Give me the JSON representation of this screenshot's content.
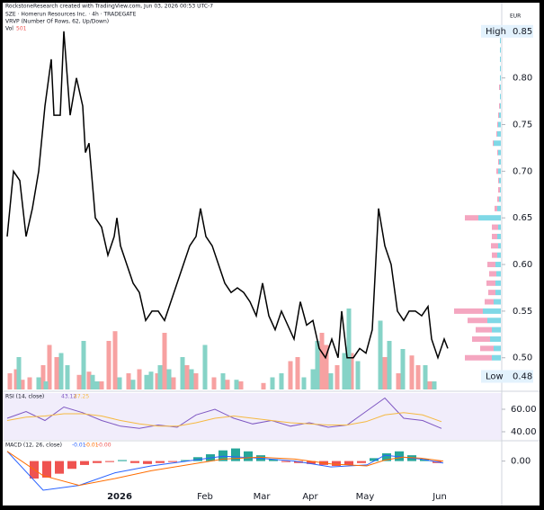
{
  "header": {
    "credit": "RockstoneResearch created with TradingView.com, Jun 03, 2026 00:53 UTC-7",
    "symbol": "SZE · Homerun Resources Inc. · 4h · TRADEGATE",
    "vrvp": "VRVP (Number Of Rows, 62, Up/Down)",
    "vol_label": "Vol",
    "vol_value": "501"
  },
  "chart_data": [
    {
      "type": "price",
      "currency": "EUR",
      "xlim": [
        0,
        502
      ],
      "xticks": [
        {
          "value": 130,
          "label": "2026"
        },
        {
          "value": 225,
          "label": "Feb"
        },
        {
          "value": 288,
          "label": "Mar"
        },
        {
          "value": 342,
          "label": "Apr"
        },
        {
          "value": 403,
          "label": "May"
        },
        {
          "value": 486,
          "label": "Jun"
        }
      ],
      "ylim": [
        0.466,
        0.872
      ],
      "yticks": [
        0.85,
        {
          "value": 0.8,
          "label": "0.80"
        },
        0.75,
        {
          "value": 0.7,
          "label": "0.70"
        },
        0.65,
        {
          "value": 0.6,
          "label": "0.60"
        },
        0.55,
        {
          "value": 0.5,
          "label": "0.50"
        }
      ],
      "high": {
        "label": "High",
        "value": 0.85
      },
      "low": {
        "label": "Low",
        "value": 0.48
      },
      "color": "#000000",
      "x": [
        5,
        12,
        19,
        26,
        33,
        40,
        47,
        54,
        57,
        64,
        68,
        75,
        82,
        89,
        92,
        96,
        103,
        110,
        117,
        124,
        127,
        131,
        138,
        145,
        152,
        159,
        166,
        173,
        180,
        187,
        194,
        201,
        208,
        215,
        220,
        226,
        233,
        240,
        247,
        254,
        261,
        268,
        275,
        282,
        289,
        296,
        303,
        310,
        317,
        324,
        331,
        338,
        345,
        352,
        359,
        366,
        373,
        377,
        383,
        390,
        397,
        404,
        411,
        418,
        425,
        432,
        439,
        446,
        452,
        459,
        466,
        473,
        477,
        484,
        491,
        495
      ],
      "values": [
        0.63,
        0.7,
        0.69,
        0.63,
        0.66,
        0.7,
        0.77,
        0.82,
        0.76,
        0.76,
        0.85,
        0.76,
        0.8,
        0.77,
        0.72,
        0.73,
        0.65,
        0.64,
        0.61,
        0.63,
        0.65,
        0.62,
        0.6,
        0.58,
        0.57,
        0.54,
        0.55,
        0.55,
        0.54,
        0.56,
        0.58,
        0.6,
        0.62,
        0.63,
        0.66,
        0.63,
        0.62,
        0.6,
        0.58,
        0.57,
        0.575,
        0.57,
        0.56,
        0.545,
        0.58,
        0.545,
        0.53,
        0.55,
        0.535,
        0.52,
        0.56,
        0.535,
        0.54,
        0.51,
        0.5,
        0.52,
        0.5,
        0.55,
        0.5,
        0.5,
        0.51,
        0.505,
        0.53,
        0.66,
        0.62,
        0.6,
        0.55,
        0.54,
        0.55,
        0.55,
        0.545,
        0.555,
        0.52,
        0.5,
        0.52,
        0.51
      ],
      "volume": {
        "vlim": [
          0,
          100
        ],
        "down": {
          "color": "#f7a1a1",
          "x": [
            8,
            15,
            22,
            30,
            45,
            52,
            60,
            85,
            96,
            110,
            118,
            125,
            140,
            152,
            172,
            180,
            190,
            205,
            215,
            235,
            250,
            265,
            290,
            320,
            328,
            355,
            360,
            372,
            388,
            425,
            440,
            455,
            462,
            475
          ],
          "values": [
            20,
            25,
            12,
            15,
            30,
            55,
            40,
            18,
            22,
            10,
            60,
            72,
            20,
            25,
            20,
            70,
            15,
            30,
            20,
            15,
            12,
            10,
            8,
            35,
            40,
            70,
            55,
            30,
            45,
            40,
            20,
            42,
            30,
            10
          ]
        },
        "up": {
          "color": "#86d3c7",
          "x": [
            18,
            40,
            48,
            65,
            72,
            90,
            100,
            105,
            130,
            145,
            160,
            165,
            175,
            185,
            200,
            210,
            225,
            245,
            260,
            300,
            310,
            335,
            345,
            350,
            365,
            380,
            385,
            395,
            420,
            430,
            445,
            470,
            480
          ],
          "values": [
            40,
            15,
            10,
            45,
            30,
            60,
            18,
            10,
            15,
            12,
            18,
            22,
            30,
            25,
            40,
            25,
            55,
            20,
            12,
            15,
            20,
            15,
            25,
            60,
            20,
            45,
            100,
            35,
            85,
            60,
            50,
            30,
            10
          ]
        }
      },
      "profile": {
        "up_color": "#7fd8e6",
        "down_color": "#f4a6c0",
        "levels": [
          0.5,
          0.51,
          0.52,
          0.53,
          0.54,
          0.55,
          0.56,
          0.57,
          0.58,
          0.59,
          0.6,
          0.61,
          0.62,
          0.63,
          0.64,
          0.65,
          0.66,
          0.67,
          0.68,
          0.69,
          0.7,
          0.71,
          0.72,
          0.73,
          0.74,
          0.75,
          0.76,
          0.77,
          0.78,
          0.79,
          0.8,
          0.81,
          0.82,
          0.83,
          0.84
        ],
        "up": [
          10,
          8,
          12,
          10,
          15,
          20,
          8,
          6,
          6,
          5,
          6,
          4,
          3,
          4,
          3,
          25,
          4,
          2,
          1,
          2,
          3,
          2,
          3,
          8,
          4,
          3,
          2,
          1,
          1,
          1,
          1,
          1,
          1,
          1,
          1
        ],
        "down": [
          30,
          15,
          20,
          18,
          22,
          32,
          10,
          8,
          10,
          8,
          9,
          6,
          8,
          6,
          7,
          15,
          3,
          2,
          2,
          1,
          2,
          1,
          1,
          1,
          1,
          1,
          1,
          1,
          0,
          1,
          0,
          0,
          0,
          0,
          0
        ]
      }
    },
    {
      "type": "rsi",
      "title": "RSI (14, close)",
      "legend_values": [
        "43.12",
        "47.25"
      ],
      "ylim": [
        33.6,
        74.4
      ],
      "yticks": [
        {
          "value": 60,
          "label": "60.00"
        },
        {
          "value": 40,
          "label": "40.00"
        }
      ],
      "x": [
        5,
        26,
        47,
        68,
        89,
        110,
        131,
        152,
        173,
        194,
        215,
        236,
        257,
        278,
        299,
        320,
        341,
        362,
        383,
        404,
        425,
        446,
        467,
        488
      ],
      "series": [
        {
          "color": "#7e57c2",
          "values": [
            52,
            58,
            50,
            62,
            57,
            50,
            45,
            43,
            46,
            44,
            55,
            60,
            52,
            47,
            50,
            45,
            48,
            44,
            46,
            58,
            70,
            52,
            50,
            43
          ]
        },
        {
          "color": "#f5b942",
          "values": [
            50,
            53,
            54,
            56,
            56,
            54,
            50,
            47,
            45,
            45,
            48,
            52,
            54,
            52,
            50,
            48,
            47,
            46,
            46,
            49,
            55,
            57,
            55,
            49
          ]
        }
      ]
    },
    {
      "type": "macd",
      "title": "MACD (12, 26, close)",
      "legend_values": [
        "-0.01",
        "-0.01",
        "-0.00"
      ],
      "ylim": [
        -0.03,
        0.02
      ],
      "yticks": [
        {
          "value": 0,
          "label": "0.00"
        }
      ],
      "hist": {
        "pos_color": "#26a69a",
        "neg_color": "#ef5350",
        "x": [
          35,
          49,
          63,
          77,
          91,
          105,
          119,
          133,
          147,
          161,
          175,
          189,
          203,
          217,
          231,
          245,
          259,
          273,
          287,
          301,
          315,
          329,
          343,
          357,
          371,
          385,
          399,
          413,
          427,
          441,
          455,
          469,
          483
        ],
        "values": [
          -0.018,
          -0.017,
          -0.013,
          -0.008,
          -0.004,
          -0.002,
          -0.001,
          0.001,
          -0.002,
          -0.003,
          -0.002,
          -0.001,
          0.001,
          0.004,
          0.007,
          0.011,
          0.013,
          0.01,
          0.006,
          0.002,
          -0.001,
          -0.002,
          -0.003,
          -0.004,
          -0.005,
          -0.004,
          -0.002,
          0.003,
          0.008,
          0.01,
          0.006,
          0.002,
          -0.002
        ]
      },
      "x": [
        5,
        45,
        85,
        125,
        165,
        205,
        245,
        285,
        325,
        365,
        405,
        425,
        445,
        465,
        490
      ],
      "series": [
        {
          "color": "#2962ff",
          "values": [
            0.01,
            -0.03,
            -0.025,
            -0.012,
            -0.005,
            0.0,
            0.005,
            0.003,
            0.0,
            -0.006,
            -0.004,
            0.006,
            0.004,
            0.002,
            -0.002
          ]
        },
        {
          "color": "#ff6d00",
          "values": [
            0.01,
            -0.015,
            -0.025,
            -0.018,
            -0.01,
            -0.004,
            0.002,
            0.004,
            0.002,
            -0.003,
            -0.005,
            0.001,
            0.004,
            0.003,
            0.0
          ]
        }
      ]
    }
  ]
}
